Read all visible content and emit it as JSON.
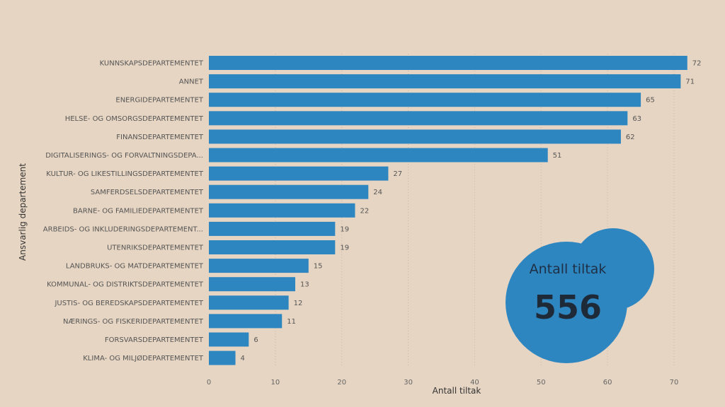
{
  "chart_data": {
    "type": "bar",
    "orientation": "horizontal",
    "categories": [
      "KUNNSKAPSDEPARTEMENTET",
      "ANNET",
      "ENERGIDEPARTEMENTET",
      "HELSE- OG OMSORGSDEPARTEMENTET",
      "FINANSDEPARTEMENTET",
      "DIGITALISERINGS- OG FORVALTNINGSDEPA...",
      "KULTUR- OG LIKESTILLINGSDEPARTEMENTET",
      "SAMFERDSELSDEPARTEMENTET",
      "BARNE- OG FAMILIEDEPARTEMENTET",
      "ARBEIDS- OG INKLUDERINGSDEPARTEMENT...",
      "UTENRIKSDEPARTEMENTET",
      "LANDBRUKS- OG MATDEPARTEMENTET",
      "KOMMUNAL- OG DISTRIKTSDEPARTEMENTET",
      "JUSTIS- OG BEREDSKAPSDEPARTEMENTET",
      "NÆRINGS- OG FISKERIDEPARTEMENTET",
      "FORSVARSDEPARTEMENTET",
      "KLIMA- OG MILJØDEPARTEMENTET"
    ],
    "values": [
      72,
      71,
      65,
      63,
      62,
      51,
      27,
      24,
      22,
      19,
      19,
      15,
      13,
      12,
      11,
      6,
      4
    ],
    "xlabel": "Antall tiltak",
    "ylabel": "Ansvarlig departement",
    "xlim": [
      0,
      75
    ],
    "xticks": [
      "0",
      "10",
      "20",
      "30",
      "40",
      "50",
      "60",
      "70"
    ],
    "grid": true,
    "bar_color": "#2e86c1"
  },
  "kpi": {
    "label": "Antall tiltak",
    "value": "556",
    "color": "#2e86c1"
  }
}
